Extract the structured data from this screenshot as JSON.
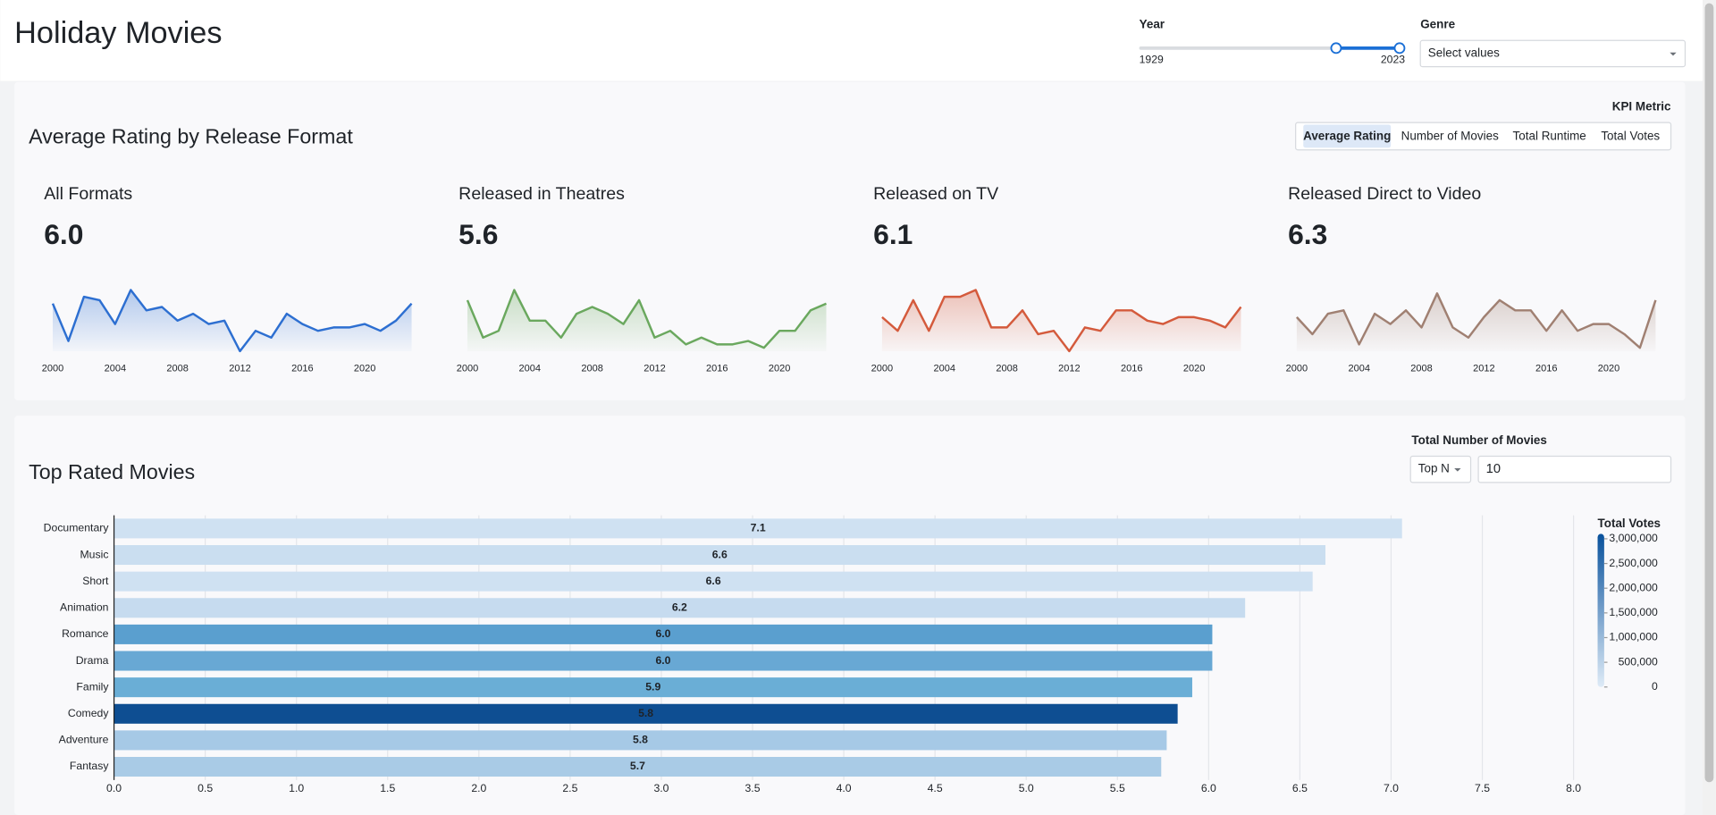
{
  "header": {
    "title": "Holiday Movies"
  },
  "filters": {
    "year": {
      "label": "Year",
      "min": 1929,
      "max": 2023
    },
    "genre": {
      "label": "Genre",
      "placeholder": "Select values"
    }
  },
  "kpi_panel": {
    "title": "Average Rating by Release Format",
    "metric_label": "KPI Metric",
    "metric_options": [
      "Average Rating",
      "Number of Movies",
      "Total Runtime",
      "Total Votes"
    ],
    "selected_index": 0
  },
  "top_panel": {
    "control_label": "Total Number of Movies",
    "mode": "Top N",
    "count": 10
  },
  "chart_data": [
    {
      "type": "line",
      "title": "All Formats",
      "kpi": {
        "value": 6.0,
        "label": "6.0"
      },
      "color": "#2d6fd1",
      "x": [
        2000,
        2001,
        2002,
        2003,
        2004,
        2005,
        2006,
        2007,
        2008,
        2009,
        2010,
        2011,
        2012,
        2013,
        2014,
        2015,
        2016,
        2017,
        2018,
        2019,
        2020,
        2021,
        2022,
        2023
      ],
      "values": [
        6.4,
        5.3,
        6.6,
        6.5,
        5.8,
        6.8,
        6.2,
        6.3,
        5.9,
        6.1,
        5.8,
        5.9,
        5.0,
        5.6,
        5.4,
        6.1,
        5.8,
        5.6,
        5.7,
        5.7,
        5.8,
        5.6,
        5.9,
        6.4
      ],
      "xlim": [
        2000,
        2023
      ],
      "ylim": [
        5.0,
        6.9
      ],
      "xticks": [
        2000,
        2004,
        2008,
        2012,
        2016,
        2020
      ]
    },
    {
      "type": "line",
      "title": "Released in Theatres",
      "kpi": {
        "value": 5.6,
        "label": "5.6"
      },
      "color": "#6aa85e",
      "x": [
        2000,
        2001,
        2002,
        2003,
        2004,
        2005,
        2006,
        2007,
        2008,
        2009,
        2010,
        2011,
        2012,
        2013,
        2014,
        2015,
        2016,
        2017,
        2018,
        2019,
        2020,
        2021,
        2022,
        2023
      ],
      "values": [
        6.5,
        5.4,
        5.6,
        6.8,
        5.9,
        5.9,
        5.4,
        6.1,
        6.3,
        6.1,
        5.8,
        6.5,
        5.4,
        5.6,
        5.2,
        5.4,
        5.2,
        5.2,
        5.3,
        5.1,
        5.6,
        5.6,
        6.2,
        6.4
      ],
      "xlim": [
        2000,
        2023
      ],
      "ylim": [
        5.0,
        6.9
      ],
      "xticks": [
        2000,
        2004,
        2008,
        2012,
        2016,
        2020
      ]
    },
    {
      "type": "line",
      "title": "Released on TV",
      "kpi": {
        "value": 6.1,
        "label": "6.1"
      },
      "color": "#d45a3c",
      "x": [
        2000,
        2001,
        2002,
        2003,
        2004,
        2005,
        2006,
        2007,
        2008,
        2009,
        2010,
        2011,
        2012,
        2013,
        2014,
        2015,
        2016,
        2017,
        2018,
        2019,
        2020,
        2021,
        2022,
        2023
      ],
      "values": [
        6.0,
        5.6,
        6.5,
        5.6,
        6.6,
        6.6,
        6.8,
        5.7,
        5.7,
        6.2,
        5.5,
        5.6,
        5.0,
        5.7,
        5.6,
        6.2,
        6.2,
        5.9,
        5.8,
        6.0,
        6.0,
        5.9,
        5.7,
        6.3
      ],
      "xlim": [
        2000,
        2023
      ],
      "ylim": [
        5.0,
        6.9
      ],
      "xticks": [
        2000,
        2004,
        2008,
        2012,
        2016,
        2020
      ]
    },
    {
      "type": "line",
      "title": "Released Direct to Video",
      "kpi": {
        "value": 6.3,
        "label": "6.3"
      },
      "color": "#a08072",
      "x": [
        2000,
        2001,
        2002,
        2003,
        2004,
        2005,
        2006,
        2007,
        2008,
        2009,
        2010,
        2011,
        2012,
        2013,
        2014,
        2015,
        2016,
        2017,
        2018,
        2019,
        2020,
        2021,
        2022,
        2023
      ],
      "values": [
        6.0,
        5.5,
        6.1,
        6.2,
        5.2,
        6.1,
        5.8,
        6.2,
        5.7,
        6.7,
        5.7,
        5.4,
        6.0,
        6.5,
        6.2,
        6.2,
        5.6,
        6.2,
        5.6,
        5.8,
        5.8,
        5.5,
        5.1,
        6.5
      ],
      "xlim": [
        2000,
        2023
      ],
      "ylim": [
        5.0,
        6.9
      ],
      "xticks": [
        2000,
        2004,
        2008,
        2012,
        2016,
        2020
      ]
    },
    {
      "type": "hbar",
      "title": "Top Rated Movies",
      "categories": [
        "Documentary",
        "Music",
        "Short",
        "Animation",
        "Romance",
        "Drama",
        "Family",
        "Comedy",
        "Adventure",
        "Fantasy"
      ],
      "values": [
        7.06,
        6.64,
        6.57,
        6.2,
        6.02,
        6.02,
        5.91,
        5.83,
        5.77,
        5.74
      ],
      "value_labels": [
        "7.1",
        "6.6",
        "6.6",
        "6.2",
        "6.0",
        "6.0",
        "5.9",
        "5.8",
        "5.8",
        "5.7"
      ],
      "colors": [
        "#cfe1f2",
        "#cadef0",
        "#cfe1f2",
        "#c6dbef",
        "#5a9fcf",
        "#68a8d4",
        "#6aaed6",
        "#0e4e92",
        "#a6c9e6",
        "#a9cbe6"
      ],
      "xlim": [
        0,
        8
      ],
      "xticks": [
        {
          "value": 0,
          "label": "0.0"
        },
        0.5,
        {
          "value": 1,
          "label": "1.0"
        },
        1.5,
        {
          "value": 2,
          "label": "2.0"
        },
        2.5,
        {
          "value": 3,
          "label": "3.0"
        },
        3.5,
        {
          "value": 4,
          "label": "4.0"
        },
        4.5,
        {
          "value": 5,
          "label": "5.0"
        },
        5.5,
        {
          "value": 6,
          "label": "6.0"
        },
        6.5,
        {
          "value": 7,
          "label": "7.0"
        },
        7.5,
        {
          "value": 8,
          "label": "8.0"
        }
      ],
      "grid": true,
      "color_scale": {
        "title": "Total Votes",
        "lim": [
          0,
          3100000
        ],
        "colors": [
          "#deebf7",
          "#08519c"
        ],
        "ticks": [
          0,
          {
            "value": 500000,
            "label": "500,000"
          },
          {
            "value": 1000000,
            "label": "1,000,000"
          },
          {
            "value": 1500000,
            "label": "1,500,000"
          },
          {
            "value": 2000000,
            "label": "2,000,000"
          },
          {
            "value": 2500000,
            "label": "2,500,000"
          },
          {
            "value": 3000000,
            "label": "3,000,000"
          }
        ]
      }
    }
  ]
}
